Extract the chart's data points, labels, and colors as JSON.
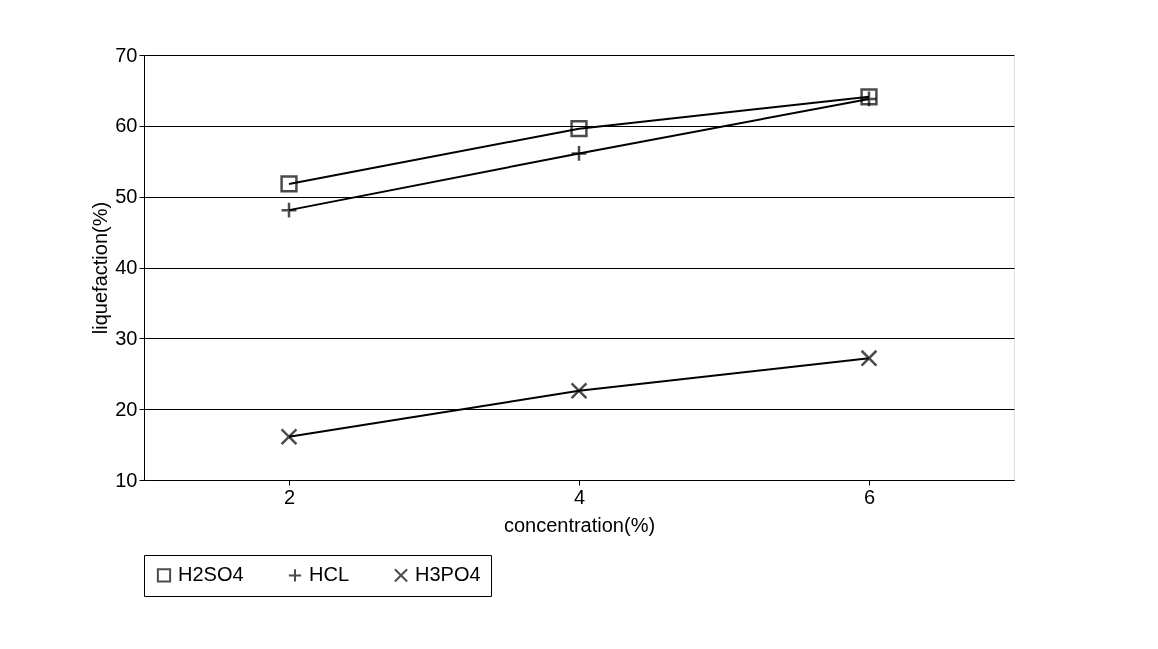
{
  "chart_data": {
    "type": "line",
    "xlabel": "concentration(%)",
    "ylabel": "liquefaction(%)",
    "categories": [
      "2",
      "4",
      "6"
    ],
    "series": [
      {
        "name": "H2SO4",
        "color": "#000000",
        "marker": "square",
        "values": [
          51.8,
          59.6,
          64.1
        ]
      },
      {
        "name": "HCL",
        "color": "#000000",
        "marker": "cross",
        "values": [
          48.1,
          56.1,
          63.8
        ]
      },
      {
        "name": "H3PO4",
        "color": "#000000",
        "marker": "x",
        "values": [
          16.1,
          22.6,
          27.2
        ]
      }
    ],
    "ylim": [
      10,
      70
    ],
    "yticks": [
      10,
      20,
      30,
      40,
      50,
      60,
      70
    ],
    "grid": "y",
    "legend": "bottom",
    "line_style": "solid"
  }
}
